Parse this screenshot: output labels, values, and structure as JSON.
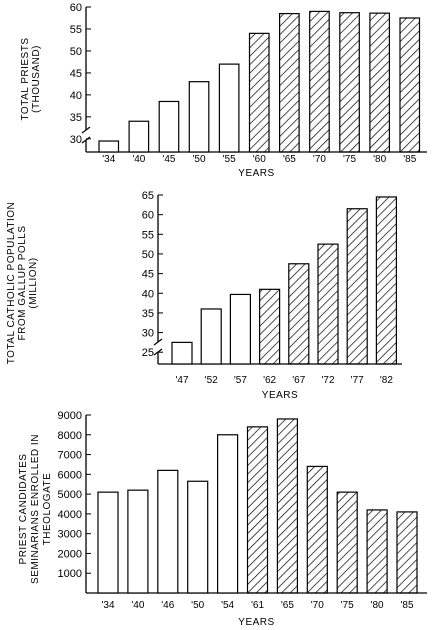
{
  "chart_data": [
    {
      "type": "bar",
      "ylabel": [
        "TOTAL PRIESTS",
        "(THOUSAND)"
      ],
      "xlabel": "YEARS",
      "categories": [
        "'34",
        "'40",
        "'45",
        "'50",
        "'55",
        "'60",
        "'65",
        "'70",
        "'75",
        "'80",
        "'85"
      ],
      "values": [
        29.5,
        34,
        38.5,
        43,
        47,
        54,
        58.5,
        59,
        58.7,
        58.6,
        57.5
      ],
      "hatched_from_index": 5,
      "ylim": [
        27,
        60
      ],
      "yticks": [
        30,
        35,
        40,
        45,
        50,
        55,
        60
      ],
      "axis_break": true,
      "grid": false
    },
    {
      "type": "bar",
      "ylabel": [
        "TOTAL CATHOLIC POPULATION",
        "FROM GALLUP POLLS",
        "(MILLION)"
      ],
      "xlabel": "YEARS",
      "categories": [
        "'47",
        "'52",
        "'57",
        "'62",
        "'67",
        "'72",
        "'77",
        "'82"
      ],
      "values": [
        27.5,
        36,
        39.7,
        41,
        47.5,
        52.5,
        61.5,
        64.5
      ],
      "hatched_from_index": 3,
      "ylim": [
        22,
        65
      ],
      "yticks": [
        25,
        30,
        35,
        40,
        45,
        50,
        55,
        60,
        65
      ],
      "axis_break": true,
      "grid": false
    },
    {
      "type": "bar",
      "ylabel": [
        "PRIEST CANDIDATES",
        "SEMINARIANS ENROLLED IN",
        "THEOLOGATE"
      ],
      "xlabel": "YEARS",
      "categories": [
        "'34",
        "'40",
        "'46",
        "'50",
        "'54",
        "'61",
        "'65",
        "'70",
        "'75",
        "'80",
        "'85"
      ],
      "values": [
        5100,
        5200,
        6200,
        5650,
        8000,
        8400,
        8800,
        6400,
        5100,
        4200,
        4100
      ],
      "hatched_from_index": 5,
      "ylim": [
        0,
        9000
      ],
      "yticks": [
        1000,
        2000,
        3000,
        4000,
        5000,
        6000,
        7000,
        8000,
        9000
      ],
      "axis_break": false,
      "grid": false
    }
  ]
}
